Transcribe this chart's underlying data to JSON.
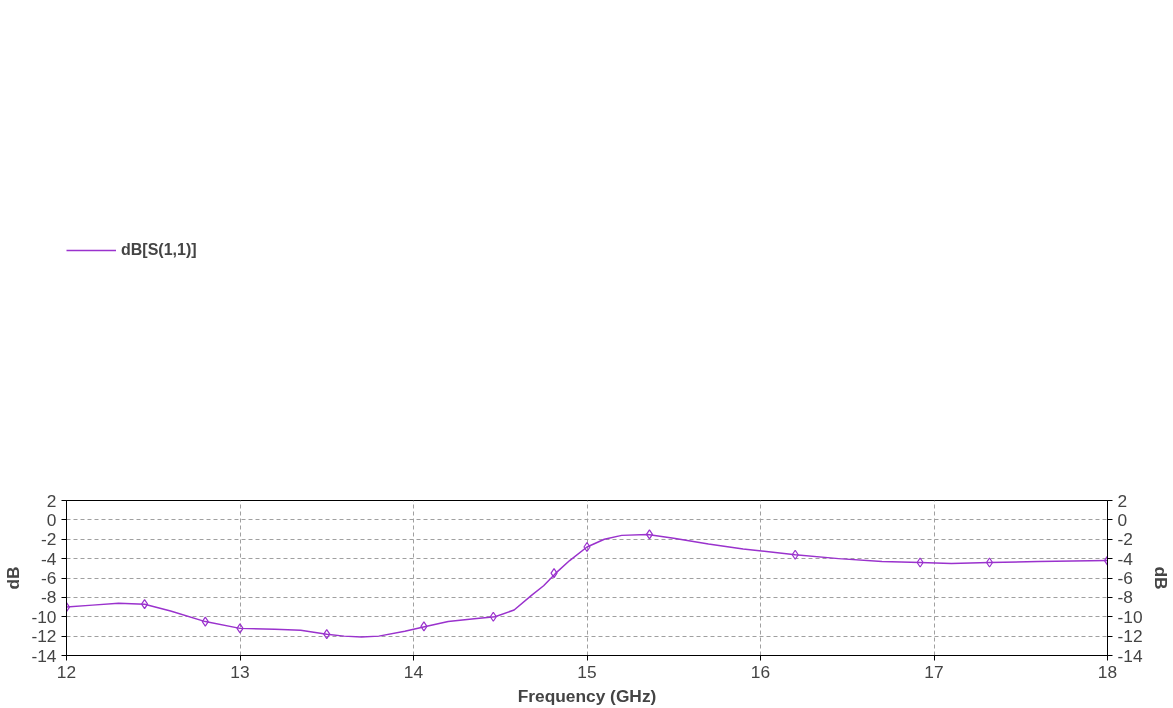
{
  "chart_data": {
    "type": "line",
    "xlabel": "Frequency (GHz)",
    "ylabel": "dB",
    "y2label": "dB",
    "xlim": [
      12,
      18
    ],
    "xticks": [
      12,
      13,
      14,
      15,
      16,
      17,
      18
    ],
    "ylim": [
      -14,
      2
    ],
    "yticks": [
      -14,
      -12,
      -10,
      -8,
      -6,
      -4,
      -2,
      0,
      2
    ],
    "y2lim": [
      -14,
      2
    ],
    "y2ticks": [
      -14,
      -12,
      -10,
      -8,
      -6,
      -4,
      -2,
      0,
      2
    ],
    "grid": true,
    "legend": "top left",
    "series": [
      {
        "name": "dB[S(1,1)]",
        "color": "#9a32cd",
        "x": [
          12,
          12.15,
          12.3,
          12.45,
          12.6,
          12.8,
          13,
          13.2,
          13.35,
          13.5,
          13.6,
          13.7,
          13.8,
          13.95,
          14.07,
          14.2,
          14.35,
          14.47,
          14.58,
          14.68,
          14.75,
          14.82,
          14.9,
          15,
          15.1,
          15.2,
          15.35,
          15.5,
          15.7,
          15.9,
          16.2,
          16.45,
          16.7,
          16.92,
          17.1,
          17.32,
          17.6,
          18
        ],
        "values": [
          -9.0,
          -8.8,
          -8.6,
          -8.7,
          -9.4,
          -10.5,
          -11.2,
          -11.3,
          -11.4,
          -11.8,
          -12.0,
          -12.1,
          -12.0,
          -11.5,
          -11.0,
          -10.5,
          -10.2,
          -10.0,
          -9.3,
          -7.8,
          -6.8,
          -5.5,
          -4.2,
          -2.8,
          -2.0,
          -1.6,
          -1.5,
          -1.9,
          -2.5,
          -3.0,
          -3.6,
          -4.0,
          -4.3,
          -4.4,
          -4.5,
          -4.4,
          -4.3,
          -4.2
        ]
      },
      {
        "color": "#9a32cd",
        "type": "scatter",
        "marker": "diamond",
        "x": [
          12,
          12.45,
          12.8,
          13,
          13.5,
          14.06,
          14.46,
          14.81,
          15.0,
          15.36,
          16.2,
          16.92,
          17.32,
          18
        ],
        "values": [
          -9.0,
          -8.7,
          -10.5,
          -11.2,
          -11.8,
          -11.0,
          -10.0,
          -5.5,
          -2.8,
          -1.5,
          -3.6,
          -4.4,
          -4.4,
          -4.2
        ]
      }
    ]
  }
}
